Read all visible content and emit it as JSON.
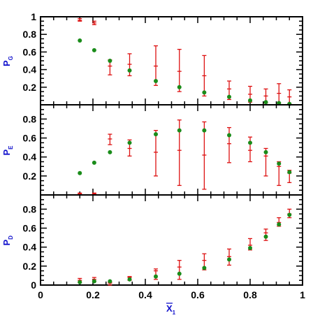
{
  "chart_data": [
    {
      "type": "scatter",
      "id": "PG",
      "ylabel_main": "P",
      "ylabel_sub": "G",
      "xlim": [
        0,
        1
      ],
      "ylim": [
        0,
        1.0
      ],
      "yticks": [
        0.2,
        0.4,
        0.6,
        0.8,
        1
      ],
      "ytick_labels": [
        "0.2",
        "0.4",
        "0.6",
        "0.8",
        "1"
      ],
      "series": [
        {
          "marker": "circle",
          "color": "#1a8c1a",
          "x": [
            0.15,
            0.205,
            0.265,
            0.34,
            0.44,
            0.53,
            0.625,
            0.72,
            0.8,
            0.86,
            0.91,
            0.95
          ],
          "y": [
            0.73,
            0.62,
            0.5,
            0.39,
            0.27,
            0.2,
            0.14,
            0.09,
            0.05,
            0.03,
            0.02,
            0.01
          ]
        },
        {
          "marker": "errorbar",
          "color": "#dd1111",
          "x": [
            0.15,
            0.205,
            0.265,
            0.34,
            0.44,
            0.53,
            0.625,
            0.72,
            0.8,
            0.86,
            0.91,
            0.95
          ],
          "y": [
            0.96,
            0.93,
            0.44,
            0.46,
            0.44,
            0.38,
            0.33,
            0.18,
            0.12,
            0.1,
            0.13,
            0.09
          ],
          "ylow": [
            0.95,
            0.91,
            0.34,
            0.33,
            0.22,
            0.15,
            0.1,
            0.06,
            0.03,
            0.02,
            0.02,
            0.01
          ],
          "yhigh": [
            0.98,
            0.95,
            0.51,
            0.58,
            0.67,
            0.63,
            0.56,
            0.27,
            0.21,
            0.18,
            0.24,
            0.17
          ]
        }
      ]
    },
    {
      "type": "scatter",
      "id": "PE",
      "ylabel_main": "P",
      "ylabel_sub": "E",
      "xlim": [
        0,
        1
      ],
      "ylim": [
        0,
        0.95
      ],
      "yticks": [
        0.2,
        0.4,
        0.6,
        0.8
      ],
      "ytick_labels": [
        "0.2",
        "0.4",
        "0.6",
        "0.8"
      ],
      "series": [
        {
          "marker": "circle",
          "color": "#1a8c1a",
          "x": [
            0.15,
            0.205,
            0.265,
            0.34,
            0.44,
            0.53,
            0.625,
            0.72,
            0.8,
            0.86,
            0.91,
            0.95
          ],
          "y": [
            0.23,
            0.34,
            0.45,
            0.55,
            0.64,
            0.68,
            0.68,
            0.63,
            0.55,
            0.45,
            0.33,
            0.24
          ]
        },
        {
          "marker": "errorbar",
          "color": "#dd1111",
          "x": [
            0.15,
            0.205,
            0.265,
            0.34,
            0.44,
            0.53,
            0.625,
            0.72,
            0.8,
            0.86,
            0.91,
            0.95
          ],
          "y": [
            0.01,
            0.01,
            0.59,
            0.49,
            0.45,
            0.47,
            0.42,
            0.54,
            0.47,
            0.41,
            0.3,
            0.23
          ],
          "ylow": [
            0.0,
            0.0,
            0.53,
            0.41,
            0.2,
            0.1,
            0.06,
            0.34,
            0.35,
            0.2,
            0.1,
            0.13
          ],
          "yhigh": [
            0.02,
            0.02,
            0.64,
            0.58,
            0.68,
            0.79,
            0.77,
            0.71,
            0.61,
            0.49,
            0.35,
            0.26
          ]
        }
      ]
    },
    {
      "type": "scatter",
      "id": "PD",
      "ylabel_main": "P",
      "ylabel_sub": "D",
      "xlim": [
        0,
        1
      ],
      "ylim": [
        0,
        0.95
      ],
      "yticks": [
        0,
        0.2,
        0.4,
        0.6,
        0.8
      ],
      "ytick_labels": [
        "0",
        "0.2",
        "0.4",
        "0.6",
        "0.8"
      ],
      "xticks": [
        0,
        0.2,
        0.4,
        0.6,
        0.8,
        1
      ],
      "xtick_labels": [
        "0",
        "0.2",
        "0.4",
        "0.6",
        "0.8",
        "1"
      ],
      "xlabel_main": "X",
      "xlabel_sub": "1",
      "series": [
        {
          "marker": "circle",
          "color": "#1a8c1a",
          "x": [
            0.15,
            0.205,
            0.265,
            0.34,
            0.44,
            0.53,
            0.625,
            0.72,
            0.8,
            0.86,
            0.91,
            0.95
          ],
          "y": [
            0.03,
            0.04,
            0.04,
            0.06,
            0.09,
            0.12,
            0.18,
            0.27,
            0.39,
            0.51,
            0.64,
            0.74
          ]
        },
        {
          "marker": "errorbar",
          "color": "#dd1111",
          "x": [
            0.15,
            0.205,
            0.265,
            0.34,
            0.44,
            0.53,
            0.625,
            0.72,
            0.8,
            0.86,
            0.91,
            0.95
          ],
          "y": [
            0.05,
            0.06,
            0.02,
            0.08,
            0.15,
            0.19,
            0.26,
            0.3,
            0.42,
            0.55,
            0.66,
            0.75
          ],
          "ylow": [
            0.03,
            0.04,
            0.0,
            0.05,
            0.06,
            0.06,
            0.16,
            0.21,
            0.37,
            0.47,
            0.62,
            0.71
          ],
          "yhigh": [
            0.07,
            0.08,
            0.03,
            0.09,
            0.17,
            0.26,
            0.33,
            0.38,
            0.49,
            0.59,
            0.71,
            0.8
          ]
        }
      ]
    }
  ]
}
